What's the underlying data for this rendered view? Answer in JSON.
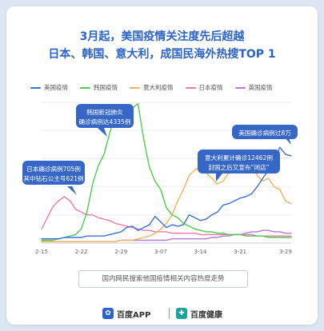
{
  "title_line1": "3月起，美国疫情关注度先后超越",
  "title_line2": "日本、韩国、意大利，成国民海外热搜TOP 1",
  "subtitle": "国内网民搜索他国疫情相关内容热度走势",
  "brand": {
    "app": "百度APP",
    "health": "百度健康"
  },
  "colors": {
    "usa": "#3b6fd8",
    "korea": "#4fcb4c",
    "italy": "#f0b25a",
    "japan": "#ee7aaa",
    "uk": "#b57ad6",
    "callout": "#3667c7"
  },
  "chart_data": {
    "type": "line",
    "x": [
      "2-15",
      "2-16",
      "2-17",
      "2-18",
      "2-19",
      "2-20",
      "2-21",
      "2-22",
      "2-23",
      "2-24",
      "2-25",
      "2-26",
      "2-27",
      "2-28",
      "2-29",
      "3-01",
      "3-02",
      "3-03",
      "3-04",
      "3-05",
      "3-06",
      "3-07",
      "3-08",
      "3-09",
      "3-10",
      "3-11",
      "3-12",
      "3-13",
      "3-14",
      "3-15",
      "3-16",
      "3-17",
      "3-18",
      "3-19",
      "3-20",
      "3-21",
      "3-22",
      "3-23",
      "3-24",
      "3-25",
      "3-26",
      "3-27",
      "3-28",
      "3-29",
      "3-30"
    ],
    "x_ticks": [
      "2-15",
      "2-22",
      "2-29",
      "3-07",
      "3-14",
      "3-21",
      "3-29"
    ],
    "ylim": [
      0,
      100
    ],
    "grid": true,
    "series": [
      {
        "name": "美国疫情",
        "key": "usa",
        "values": [
          3,
          3,
          3,
          3,
          4,
          4,
          4,
          4,
          5,
          5,
          5,
          5,
          6,
          7,
          8,
          11,
          12,
          9,
          11,
          13,
          19,
          15,
          11,
          13,
          12,
          13,
          20,
          18,
          16,
          17,
          20,
          22,
          27,
          28,
          30,
          32,
          33,
          35,
          40,
          46,
          52,
          58,
          68,
          63,
          62
        ]
      },
      {
        "name": "韩国疫情",
        "key": "korea",
        "values": [
          2,
          2,
          2,
          3,
          4,
          5,
          6,
          10,
          22,
          42,
          55,
          63,
          78,
          92,
          96,
          97,
          96,
          99,
          74,
          54,
          44,
          38,
          25,
          20,
          18,
          14,
          12,
          10,
          9,
          8,
          8,
          7,
          7,
          6,
          6,
          6,
          5,
          5,
          5,
          5,
          4,
          4,
          4,
          4,
          4
        ]
      },
      {
        "name": "意大利疫情",
        "key": "italy",
        "values": [
          1,
          1,
          1,
          1,
          1,
          1,
          1,
          1,
          1,
          1,
          1,
          1,
          1,
          1,
          2,
          2,
          2,
          3,
          4,
          5,
          7,
          10,
          14,
          20,
          30,
          38,
          48,
          52,
          54,
          50,
          46,
          42,
          44,
          50,
          54,
          56,
          60,
          56,
          48,
          44,
          46,
          40,
          38,
          30,
          28
        ]
      },
      {
        "name": "日本疫情",
        "key": "japan",
        "values": [
          10,
          18,
          26,
          30,
          33,
          30,
          24,
          22,
          20,
          20,
          18,
          17,
          16,
          14,
          13,
          12,
          11,
          10,
          9,
          9,
          8,
          8,
          8,
          7,
          7,
          7,
          7,
          7,
          6,
          6,
          6,
          6,
          6,
          6,
          6,
          6,
          6,
          6,
          5,
          5,
          5,
          5,
          5,
          5,
          5
        ]
      },
      {
        "name": "英国疫情",
        "key": "uk",
        "values": [
          1,
          1,
          1,
          1,
          1,
          1,
          1,
          1,
          1,
          1,
          1,
          1,
          1,
          1,
          2,
          2,
          2,
          2,
          2,
          2,
          2,
          2,
          2,
          3,
          3,
          3,
          3,
          3,
          3,
          3,
          4,
          4,
          5,
          5,
          6,
          6,
          7,
          8,
          8,
          9,
          9,
          8,
          8,
          7,
          7
        ]
      }
    ],
    "annotations": [
      {
        "lines": [
          "日本确诊病例705例",
          "其中钻石公主号621例"
        ],
        "x": "2-19"
      },
      {
        "lines": [
          "韩国新冠肺炎",
          "确诊病例达4335例"
        ],
        "x": "3-01"
      },
      {
        "lines": [
          "意大利累计确诊12462例",
          "封国之后又宣布“闭店”"
        ],
        "x": "3-12"
      },
      {
        "lines": [
          "美国确诊病例过8万"
        ],
        "x": "3-27"
      }
    ]
  }
}
